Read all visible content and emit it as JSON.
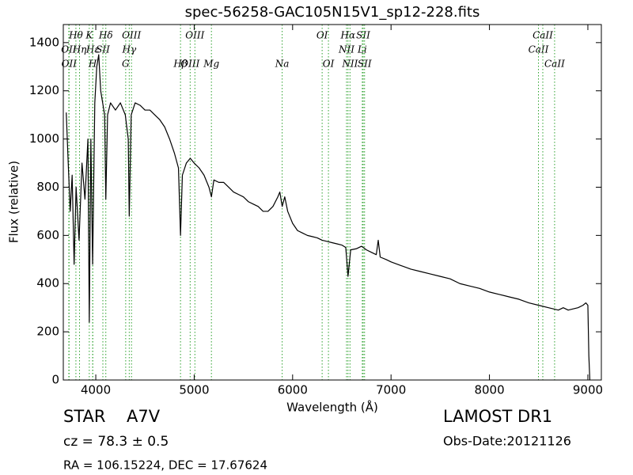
{
  "chart_data": {
    "type": "line",
    "title": "spec-56258-GAC105N15V1_sp12-228.fits",
    "x_label": "Wavelength (Å)",
    "y_label": "Flux (relative)",
    "color": "#000000",
    "line_color": "#2ca02c",
    "xlim": [
      3670,
      9137
    ],
    "ylim": [
      0,
      1475
    ],
    "xticks": [
      4000,
      5000,
      6000,
      7000,
      8000,
      9000
    ],
    "yticks": [
      0,
      200,
      400,
      600,
      800,
      1000,
      1200,
      1400
    ],
    "x": [
      3700,
      3720,
      3740,
      3760,
      3780,
      3800,
      3830,
      3860,
      3890,
      3920,
      3934,
      3950,
      3968,
      3990,
      4010,
      4030,
      4050,
      4070,
      4090,
      4102,
      4120,
      4150,
      4200,
      4250,
      4300,
      4330,
      4340,
      4360,
      4400,
      4450,
      4500,
      4550,
      4600,
      4650,
      4700,
      4750,
      4800,
      4840,
      4861,
      4880,
      4920,
      4960,
      5000,
      5050,
      5100,
      5150,
      5175,
      5200,
      5250,
      5300,
      5350,
      5400,
      5450,
      5500,
      5550,
      5600,
      5650,
      5700,
      5750,
      5800,
      5850,
      5870,
      5894,
      5920,
      5950,
      6000,
      6050,
      6100,
      6150,
      6200,
      6250,
      6300,
      6350,
      6400,
      6450,
      6500,
      6540,
      6563,
      6590,
      6650,
      6700,
      6750,
      6800,
      6850,
      6870,
      6890,
      6950,
      7000,
      7100,
      7200,
      7300,
      7400,
      7500,
      7600,
      7700,
      7800,
      7900,
      8000,
      8100,
      8200,
      8300,
      8400,
      8500,
      8600,
      8700,
      8750,
      8800,
      8900,
      8950,
      8980,
      9000,
      9010,
      9020
    ],
    "values": [
      1110,
      900,
      700,
      850,
      480,
      800,
      580,
      900,
      750,
      1000,
      240,
      1000,
      480,
      1150,
      1300,
      1350,
      1200,
      1150,
      1100,
      750,
      1100,
      1150,
      1120,
      1150,
      1100,
      1000,
      680,
      1100,
      1150,
      1140,
      1120,
      1120,
      1100,
      1080,
      1050,
      1000,
      940,
      880,
      600,
      850,
      900,
      920,
      900,
      880,
      850,
      800,
      760,
      830,
      820,
      820,
      800,
      780,
      770,
      760,
      740,
      730,
      720,
      700,
      700,
      720,
      760,
      780,
      720,
      760,
      700,
      650,
      620,
      610,
      600,
      595,
      590,
      580,
      575,
      570,
      565,
      560,
      550,
      430,
      540,
      545,
      555,
      540,
      530,
      520,
      580,
      510,
      500,
      490,
      475,
      460,
      450,
      440,
      430,
      420,
      400,
      390,
      380,
      365,
      355,
      345,
      335,
      320,
      310,
      300,
      290,
      300,
      290,
      300,
      310,
      320,
      310,
      100,
      0
    ],
    "lines": [
      {
        "label": "OII",
        "wavelength": 3726
      },
      {
        "label": "OII",
        "wavelength": 3729
      },
      {
        "label": "Hθ",
        "wavelength": 3798
      },
      {
        "label": "Hη",
        "wavelength": 3835
      },
      {
        "label": "K",
        "wavelength": 3934
      },
      {
        "label": "Hε",
        "wavelength": 3970
      },
      {
        "label": "H",
        "wavelength": 3968
      },
      {
        "label": "SII",
        "wavelength": 4072
      },
      {
        "label": "Hδ",
        "wavelength": 4102
      },
      {
        "label": "G",
        "wavelength": 4304
      },
      {
        "label": "Hγ",
        "wavelength": 4340
      },
      {
        "label": "OIII",
        "wavelength": 4363
      },
      {
        "label": "Hβ",
        "wavelength": 4861
      },
      {
        "label": "OIII",
        "wavelength": 4959
      },
      {
        "label": "OIII",
        "wavelength": 5007
      },
      {
        "label": "Mg",
        "wavelength": 5175
      },
      {
        "label": "Na",
        "wavelength": 5894
      },
      {
        "label": "OI",
        "wavelength": 6300
      },
      {
        "label": "OI",
        "wavelength": 6364
      },
      {
        "label": "NII",
        "wavelength": 6548
      },
      {
        "label": "Hα",
        "wavelength": 6563
      },
      {
        "label": "NII",
        "wavelength": 6583
      },
      {
        "label": "Li",
        "wavelength": 6708
      },
      {
        "label": "SII",
        "wavelength": 6717
      },
      {
        "label": "SII",
        "wavelength": 6731
      },
      {
        "label": "CaII",
        "wavelength": 8498
      },
      {
        "label": "CaII",
        "wavelength": 8542
      },
      {
        "label": "CaII",
        "wavelength": 8662
      }
    ],
    "object_class": "STAR",
    "subclass": "A7V",
    "redshift": "cz = 78.3 ± 0.5",
    "coordinates": "RA = 106.15224, DEC = 17.67624",
    "survey": "LAMOST DR1",
    "obs_date": "Obs-Date:20121126"
  }
}
